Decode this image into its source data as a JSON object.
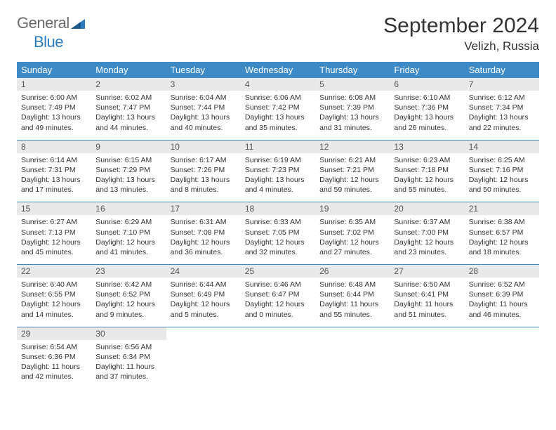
{
  "brand": {
    "general": "General",
    "blue": "Blue",
    "logo_color": "#2d7cc0",
    "logo_grey": "#6a6a6a"
  },
  "title": "September 2024",
  "location": "Velizh, Russia",
  "colors": {
    "header_bg": "#3d8ac7",
    "header_text": "#ffffff",
    "daynum_bg": "#e9e9e9",
    "daynum_text": "#555555",
    "body_text": "#333333",
    "divider": "#3d8ac7",
    "page_bg": "#ffffff"
  },
  "dayNames": [
    "Sunday",
    "Monday",
    "Tuesday",
    "Wednesday",
    "Thursday",
    "Friday",
    "Saturday"
  ],
  "weeks": [
    [
      {
        "n": "1",
        "sr": "6:00 AM",
        "ss": "7:49 PM",
        "dl": "13 hours and 49 minutes."
      },
      {
        "n": "2",
        "sr": "6:02 AM",
        "ss": "7:47 PM",
        "dl": "13 hours and 44 minutes."
      },
      {
        "n": "3",
        "sr": "6:04 AM",
        "ss": "7:44 PM",
        "dl": "13 hours and 40 minutes."
      },
      {
        "n": "4",
        "sr": "6:06 AM",
        "ss": "7:42 PM",
        "dl": "13 hours and 35 minutes."
      },
      {
        "n": "5",
        "sr": "6:08 AM",
        "ss": "7:39 PM",
        "dl": "13 hours and 31 minutes."
      },
      {
        "n": "6",
        "sr": "6:10 AM",
        "ss": "7:36 PM",
        "dl": "13 hours and 26 minutes."
      },
      {
        "n": "7",
        "sr": "6:12 AM",
        "ss": "7:34 PM",
        "dl": "13 hours and 22 minutes."
      }
    ],
    [
      {
        "n": "8",
        "sr": "6:14 AM",
        "ss": "7:31 PM",
        "dl": "13 hours and 17 minutes."
      },
      {
        "n": "9",
        "sr": "6:15 AM",
        "ss": "7:29 PM",
        "dl": "13 hours and 13 minutes."
      },
      {
        "n": "10",
        "sr": "6:17 AM",
        "ss": "7:26 PM",
        "dl": "13 hours and 8 minutes."
      },
      {
        "n": "11",
        "sr": "6:19 AM",
        "ss": "7:23 PM",
        "dl": "13 hours and 4 minutes."
      },
      {
        "n": "12",
        "sr": "6:21 AM",
        "ss": "7:21 PM",
        "dl": "12 hours and 59 minutes."
      },
      {
        "n": "13",
        "sr": "6:23 AM",
        "ss": "7:18 PM",
        "dl": "12 hours and 55 minutes."
      },
      {
        "n": "14",
        "sr": "6:25 AM",
        "ss": "7:16 PM",
        "dl": "12 hours and 50 minutes."
      }
    ],
    [
      {
        "n": "15",
        "sr": "6:27 AM",
        "ss": "7:13 PM",
        "dl": "12 hours and 45 minutes."
      },
      {
        "n": "16",
        "sr": "6:29 AM",
        "ss": "7:10 PM",
        "dl": "12 hours and 41 minutes."
      },
      {
        "n": "17",
        "sr": "6:31 AM",
        "ss": "7:08 PM",
        "dl": "12 hours and 36 minutes."
      },
      {
        "n": "18",
        "sr": "6:33 AM",
        "ss": "7:05 PM",
        "dl": "12 hours and 32 minutes."
      },
      {
        "n": "19",
        "sr": "6:35 AM",
        "ss": "7:02 PM",
        "dl": "12 hours and 27 minutes."
      },
      {
        "n": "20",
        "sr": "6:37 AM",
        "ss": "7:00 PM",
        "dl": "12 hours and 23 minutes."
      },
      {
        "n": "21",
        "sr": "6:38 AM",
        "ss": "6:57 PM",
        "dl": "12 hours and 18 minutes."
      }
    ],
    [
      {
        "n": "22",
        "sr": "6:40 AM",
        "ss": "6:55 PM",
        "dl": "12 hours and 14 minutes."
      },
      {
        "n": "23",
        "sr": "6:42 AM",
        "ss": "6:52 PM",
        "dl": "12 hours and 9 minutes."
      },
      {
        "n": "24",
        "sr": "6:44 AM",
        "ss": "6:49 PM",
        "dl": "12 hours and 5 minutes."
      },
      {
        "n": "25",
        "sr": "6:46 AM",
        "ss": "6:47 PM",
        "dl": "12 hours and 0 minutes."
      },
      {
        "n": "26",
        "sr": "6:48 AM",
        "ss": "6:44 PM",
        "dl": "11 hours and 55 minutes."
      },
      {
        "n": "27",
        "sr": "6:50 AM",
        "ss": "6:41 PM",
        "dl": "11 hours and 51 minutes."
      },
      {
        "n": "28",
        "sr": "6:52 AM",
        "ss": "6:39 PM",
        "dl": "11 hours and 46 minutes."
      }
    ],
    [
      {
        "n": "29",
        "sr": "6:54 AM",
        "ss": "6:36 PM",
        "dl": "11 hours and 42 minutes."
      },
      {
        "n": "30",
        "sr": "6:56 AM",
        "ss": "6:34 PM",
        "dl": "11 hours and 37 minutes."
      },
      null,
      null,
      null,
      null,
      null
    ]
  ],
  "labels": {
    "sunrise": "Sunrise:",
    "sunset": "Sunset:",
    "daylight": "Daylight:"
  }
}
